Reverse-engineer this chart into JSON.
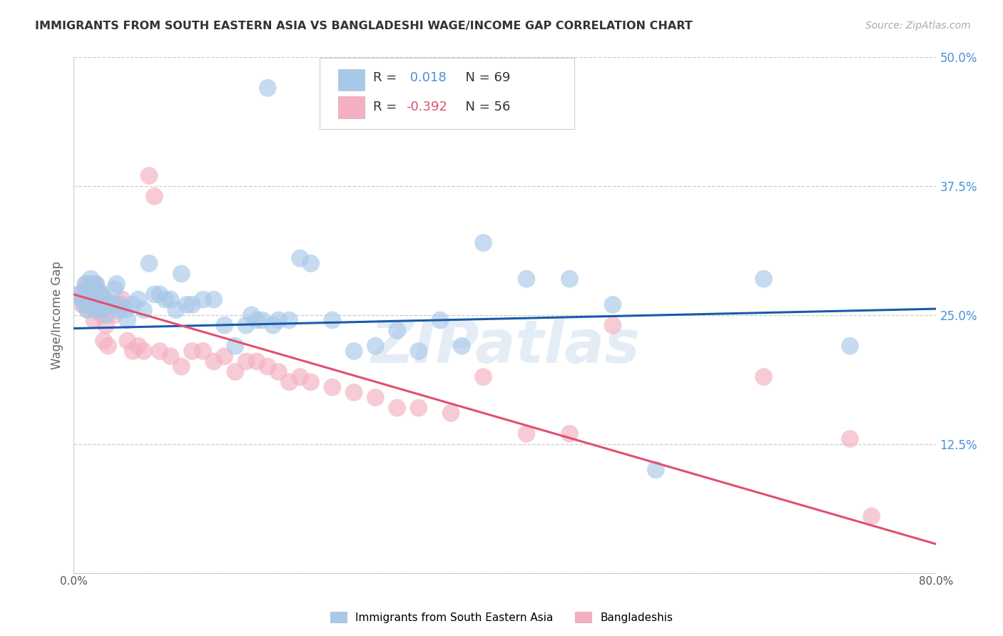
{
  "title": "IMMIGRANTS FROM SOUTH EASTERN ASIA VS BANGLADESHI WAGE/INCOME GAP CORRELATION CHART",
  "source": "Source: ZipAtlas.com",
  "ylabel": "Wage/Income Gap",
  "xlim": [
    0.0,
    0.8
  ],
  "ylim": [
    0.0,
    0.5
  ],
  "xticks": [
    0.0,
    0.2,
    0.4,
    0.6,
    0.8
  ],
  "xticklabels": [
    "0.0%",
    "",
    "",
    "",
    "80.0%"
  ],
  "yticks": [
    0.0,
    0.125,
    0.25,
    0.375,
    0.5
  ],
  "yticklabels": [
    "",
    "12.5%",
    "25.0%",
    "37.5%",
    "50.0%"
  ],
  "blue_color": "#a8c8e8",
  "pink_color": "#f4b0c0",
  "blue_line_color": "#1a5aad",
  "pink_line_color": "#e05070",
  "grid_color": "#cccccc",
  "watermark": "ZIPatlas",
  "legend_label_blue": "Immigrants from South Eastern Asia",
  "legend_label_pink": "Bangladeshis",
  "R_blue": 0.018,
  "N_blue": 69,
  "R_pink": -0.392,
  "N_pink": 56,
  "blue_line_start_y": 0.237,
  "blue_line_end_y": 0.256,
  "pink_line_start_y": 0.27,
  "pink_line_end_y": 0.028,
  "blue_x": [
    0.005,
    0.008,
    0.01,
    0.011,
    0.012,
    0.013,
    0.015,
    0.016,
    0.018,
    0.019,
    0.02,
    0.02,
    0.021,
    0.022,
    0.023,
    0.024,
    0.025,
    0.026,
    0.028,
    0.03,
    0.03,
    0.032,
    0.035,
    0.038,
    0.04,
    0.042,
    0.045,
    0.048,
    0.05,
    0.055,
    0.06,
    0.065,
    0.07,
    0.075,
    0.08,
    0.085,
    0.09,
    0.095,
    0.1,
    0.105,
    0.11,
    0.12,
    0.13,
    0.14,
    0.15,
    0.16,
    0.165,
    0.17,
    0.175,
    0.18,
    0.185,
    0.19,
    0.2,
    0.21,
    0.22,
    0.24,
    0.26,
    0.28,
    0.3,
    0.32,
    0.34,
    0.36,
    0.38,
    0.42,
    0.46,
    0.5,
    0.54,
    0.64,
    0.72
  ],
  "blue_y": [
    0.27,
    0.265,
    0.26,
    0.28,
    0.275,
    0.255,
    0.275,
    0.285,
    0.28,
    0.265,
    0.27,
    0.255,
    0.28,
    0.275,
    0.265,
    0.26,
    0.255,
    0.27,
    0.265,
    0.25,
    0.265,
    0.26,
    0.26,
    0.275,
    0.28,
    0.255,
    0.26,
    0.255,
    0.245,
    0.26,
    0.265,
    0.255,
    0.3,
    0.27,
    0.27,
    0.265,
    0.265,
    0.255,
    0.29,
    0.26,
    0.26,
    0.265,
    0.265,
    0.24,
    0.22,
    0.24,
    0.25,
    0.245,
    0.245,
    0.47,
    0.24,
    0.245,
    0.245,
    0.305,
    0.3,
    0.245,
    0.215,
    0.22,
    0.235,
    0.215,
    0.245,
    0.22,
    0.32,
    0.285,
    0.285,
    0.26,
    0.1,
    0.285,
    0.22
  ],
  "pink_x": [
    0.005,
    0.008,
    0.01,
    0.012,
    0.013,
    0.015,
    0.016,
    0.018,
    0.019,
    0.02,
    0.021,
    0.022,
    0.023,
    0.025,
    0.026,
    0.028,
    0.03,
    0.032,
    0.035,
    0.038,
    0.04,
    0.045,
    0.05,
    0.055,
    0.06,
    0.065,
    0.07,
    0.075,
    0.08,
    0.09,
    0.1,
    0.11,
    0.12,
    0.13,
    0.14,
    0.15,
    0.16,
    0.17,
    0.18,
    0.19,
    0.2,
    0.21,
    0.22,
    0.24,
    0.26,
    0.28,
    0.3,
    0.32,
    0.35,
    0.38,
    0.42,
    0.46,
    0.5,
    0.64,
    0.72,
    0.74
  ],
  "pink_y": [
    0.27,
    0.26,
    0.265,
    0.28,
    0.255,
    0.265,
    0.275,
    0.26,
    0.245,
    0.28,
    0.275,
    0.265,
    0.255,
    0.27,
    0.25,
    0.225,
    0.24,
    0.22,
    0.26,
    0.25,
    0.26,
    0.265,
    0.225,
    0.215,
    0.22,
    0.215,
    0.385,
    0.365,
    0.215,
    0.21,
    0.2,
    0.215,
    0.215,
    0.205,
    0.21,
    0.195,
    0.205,
    0.205,
    0.2,
    0.195,
    0.185,
    0.19,
    0.185,
    0.18,
    0.175,
    0.17,
    0.16,
    0.16,
    0.155,
    0.19,
    0.135,
    0.135,
    0.24,
    0.19,
    0.13,
    0.055
  ]
}
